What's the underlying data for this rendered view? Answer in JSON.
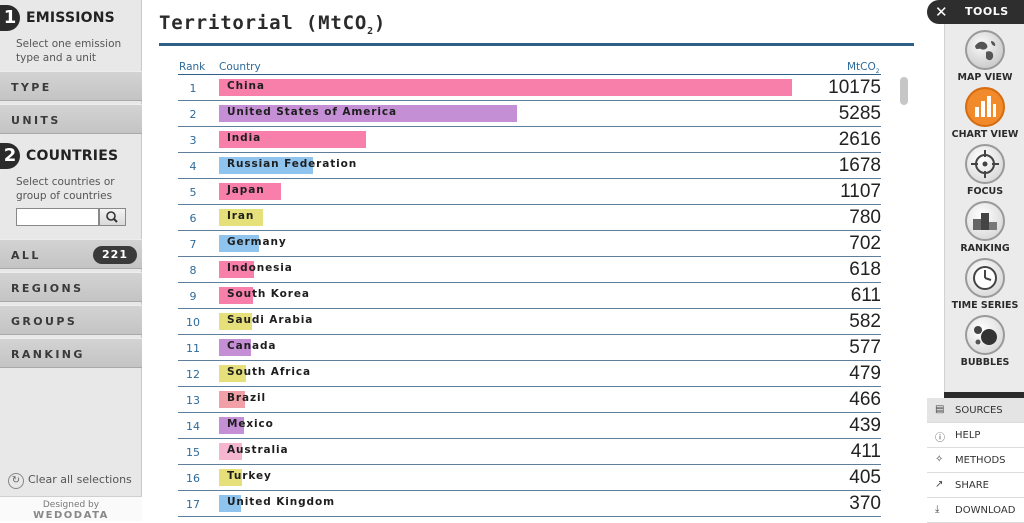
{
  "sidebar": {
    "emissions": {
      "num": "1",
      "title": "EMISSIONS",
      "desc": "Select one emission type and a unit"
    },
    "type_label": "TYPE",
    "units_label": "UNITS",
    "countries": {
      "num": "2",
      "title": "COUNTRIES",
      "desc": "Select countries or group of countries"
    },
    "search_value": "",
    "all_label": "ALL",
    "all_count": "221",
    "regions_label": "REGIONS",
    "groups_label": "GROUPS",
    "ranking_label": "RANKING",
    "clear_label": "Clear all selections",
    "designed_by": "Designed by",
    "designer": "WEDODATA"
  },
  "main": {
    "title": "Territorial (MtCO",
    "title_sub": "2",
    "title_end": ")",
    "col_rank": "Rank",
    "col_country": "Country",
    "col_unit": "MtCO",
    "col_unit_sub": "2"
  },
  "chart_data": {
    "type": "bar",
    "max_value": 10175,
    "rows": [
      {
        "rank": "1",
        "country": "China",
        "value": 10175,
        "color": "#f77fa9"
      },
      {
        "rank": "2",
        "country": "United States of America",
        "value": 5285,
        "color": "#c58fd6"
      },
      {
        "rank": "3",
        "country": "India",
        "value": 2616,
        "color": "#f77fa9"
      },
      {
        "rank": "4",
        "country": "Russian Federation",
        "value": 1678,
        "color": "#8fc4ee"
      },
      {
        "rank": "5",
        "country": "Japan",
        "value": 1107,
        "color": "#f77fa9"
      },
      {
        "rank": "6",
        "country": "Iran",
        "value": 780,
        "color": "#e5e07a"
      },
      {
        "rank": "7",
        "country": "Germany",
        "value": 702,
        "color": "#8fc4ee"
      },
      {
        "rank": "8",
        "country": "Indonesia",
        "value": 618,
        "color": "#f77fa9"
      },
      {
        "rank": "9",
        "country": "South Korea",
        "value": 611,
        "color": "#f77fa9"
      },
      {
        "rank": "10",
        "country": "Saudi Arabia",
        "value": 582,
        "color": "#e5e07a"
      },
      {
        "rank": "11",
        "country": "Canada",
        "value": 577,
        "color": "#c58fd6"
      },
      {
        "rank": "12",
        "country": "South Africa",
        "value": 479,
        "color": "#e5e07a"
      },
      {
        "rank": "13",
        "country": "Brazil",
        "value": 466,
        "color": "#f2a0a8"
      },
      {
        "rank": "14",
        "country": "Mexico",
        "value": 439,
        "color": "#c58fd6"
      },
      {
        "rank": "15",
        "country": "Australia",
        "value": 411,
        "color": "#f7b6d0"
      },
      {
        "rank": "16",
        "country": "Turkey",
        "value": 405,
        "color": "#e5e07a"
      },
      {
        "rank": "17",
        "country": "United Kingdom",
        "value": 370,
        "color": "#8fc4ee"
      }
    ]
  },
  "tools": {
    "header": "TOOLS",
    "items": [
      {
        "label": "MAP VIEW",
        "icon": "globe-icon"
      },
      {
        "label": "CHART VIEW",
        "icon": "bar-chart-icon"
      },
      {
        "label": "FOCUS",
        "icon": "crosshair-icon"
      },
      {
        "label": "RANKING",
        "icon": "podium-icon"
      },
      {
        "label": "TIME SERIES",
        "icon": "clock-icon"
      },
      {
        "label": "BUBBLES",
        "icon": "bubbles-icon"
      }
    ],
    "links": [
      {
        "label": "SOURCES",
        "icon": "document-icon"
      },
      {
        "label": "HELP",
        "icon": "help-icon"
      },
      {
        "label": "METHODS",
        "icon": "lightbulb-icon"
      },
      {
        "label": "SHARE",
        "icon": "share-icon"
      },
      {
        "label": "DOWNLOAD",
        "icon": "download-icon"
      }
    ],
    "accent": "#f08a2a"
  }
}
